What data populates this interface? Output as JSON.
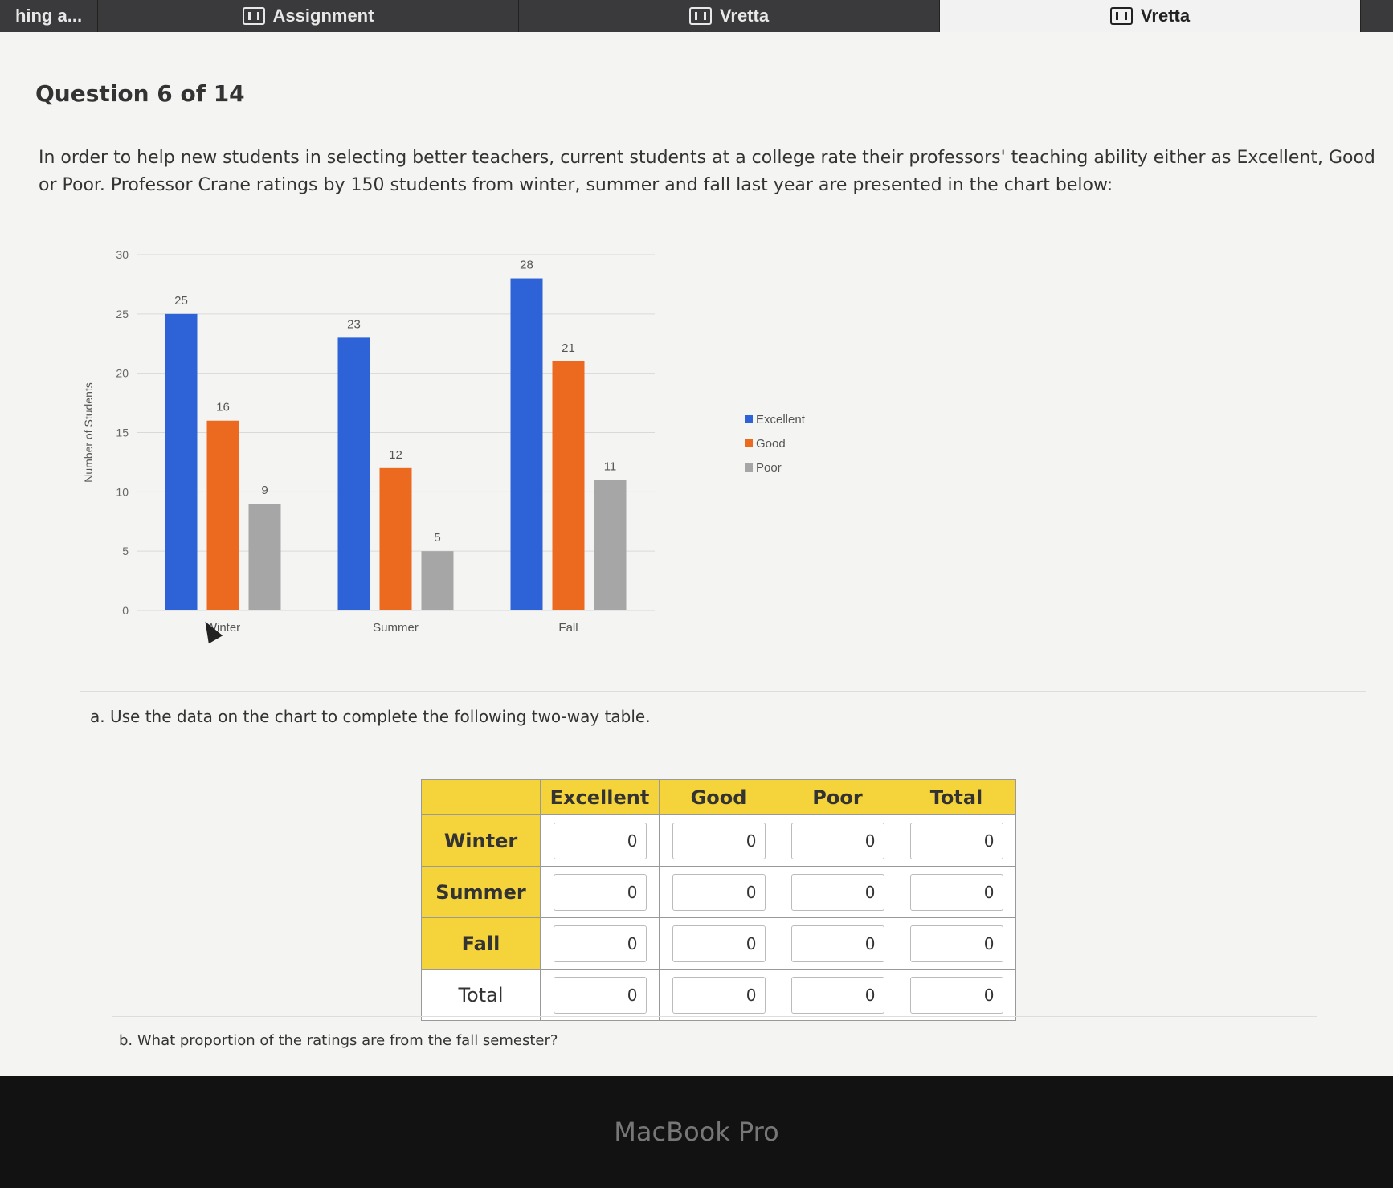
{
  "tabs": [
    {
      "label": "hing a...",
      "width": 122,
      "active": false
    },
    {
      "label": "Assignment",
      "width": 524,
      "active": false
    },
    {
      "label": "Vretta",
      "width": 524,
      "active": false
    },
    {
      "label": "Vretta",
      "width": 524,
      "active": true
    }
  ],
  "question": {
    "title": "Question 6 of 14",
    "intro": "In order to help new students in selecting better teachers, current students at a college rate their professors' teaching ability either as Excellent, Good or Poor. Professor Crane ratings by 150 students from winter, summer and fall last year are presented in the chart below:",
    "part_a": "a. Use the data on the chart to complete the following two-way table.",
    "part_b": "b. What proportion of the ratings are from the fall semester?"
  },
  "chart_data": {
    "type": "bar",
    "categories": [
      "Winter",
      "Summer",
      "Fall"
    ],
    "series": [
      {
        "name": "Excellent",
        "values": [
          25,
          23,
          28
        ],
        "color": "#2e63d8"
      },
      {
        "name": "Good",
        "values": [
          16,
          12,
          21
        ],
        "color": "#ec6a1f"
      },
      {
        "name": "Poor",
        "values": [
          9,
          5,
          11
        ],
        "color": "#a6a6a6"
      }
    ],
    "title": "",
    "xlabel": "",
    "ylabel": "Number of Students",
    "ylim": [
      0,
      30
    ],
    "yticks": [
      0,
      5,
      10,
      15,
      20,
      25,
      30
    ],
    "grid": true,
    "legend": "right"
  },
  "table": {
    "columns": [
      "Excellent",
      "Good",
      "Poor",
      "Total"
    ],
    "rows": [
      {
        "label": "Winter",
        "values": [
          "0",
          "0",
          "0",
          "0"
        ]
      },
      {
        "label": "Summer",
        "values": [
          "0",
          "0",
          "0",
          "0"
        ]
      },
      {
        "label": "Fall",
        "values": [
          "0",
          "0",
          "0",
          "0"
        ]
      },
      {
        "label": "Total",
        "values": [
          "0",
          "0",
          "0",
          "0"
        ]
      }
    ]
  },
  "bezel": {
    "label": "MacBook Pro"
  }
}
